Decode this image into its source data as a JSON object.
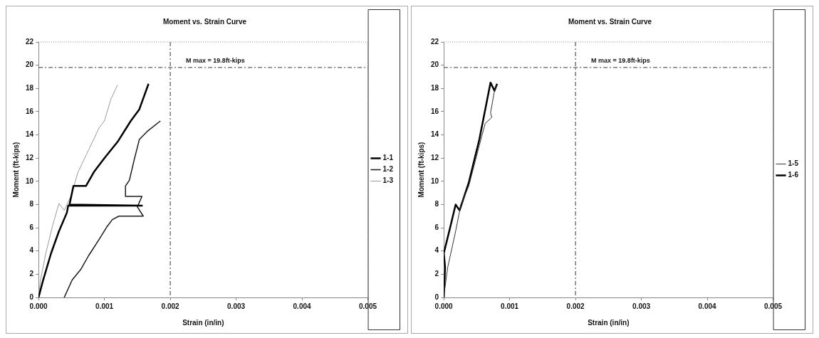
{
  "chart_data": [
    {
      "type": "line",
      "title": "Moment vs. Strain Curve",
      "xlabel": "Strain (in/in)",
      "ylabel": "Moment (ft-kips)",
      "xlim": [
        0,
        0.005
      ],
      "xticks": [
        {
          "value": 0,
          "label": "0.000"
        },
        {
          "value": 0.001,
          "label": "0.001"
        },
        {
          "value": 0.002,
          "label": "0.002"
        },
        {
          "value": 0.003,
          "label": "0.003"
        },
        {
          "value": 0.004,
          "label": "0.004"
        },
        {
          "value": 0.005,
          "label": "0.005"
        }
      ],
      "ylim": [
        0,
        22
      ],
      "yticks": [
        0,
        2,
        4,
        6,
        8,
        10,
        12,
        14,
        16,
        18,
        20,
        22
      ],
      "grid": false,
      "legend": "right",
      "marker": "none",
      "line_style": "solid",
      "ref_lines": [
        {
          "axis": "y",
          "value": 19.8,
          "label": "M max = 19.8ft-kips",
          "color": "#333333",
          "line_style": "dashdot"
        },
        {
          "axis": "x",
          "value": 0.002,
          "label": null,
          "color": "#333333",
          "line_style": "dashdot"
        }
      ],
      "series": [
        {
          "name": "1-1",
          "color": "#000000",
          "x": [
            0,
            7e-05,
            0.00019,
            0.00031,
            0.00043,
            0.00045,
            0.00157,
            0.00047,
            0.00053,
            0.00072,
            0.00084,
            0.001,
            0.0012,
            0.0014,
            0.00153,
            0.00167
          ],
          "values": [
            0,
            1.5,
            3.8,
            5.7,
            7.3,
            7.9,
            7.9,
            8.0,
            9.6,
            9.6,
            10.8,
            12,
            13.4,
            15.2,
            16.2,
            18.4
          ]
        },
        {
          "name": "1-2",
          "color": "#1a1a1a",
          "x": [
            0.00039,
            0.00051,
            0.00064,
            0.00076,
            0.00092,
            0.00104,
            0.00112,
            0.00122,
            0.00159,
            0.0015,
            0.00157,
            0.00132,
            0.00132,
            0.00138,
            0.00145,
            0.00153,
            0.00165,
            0.00185
          ],
          "values": [
            0,
            1.5,
            2.4,
            3.6,
            5.0,
            6.1,
            6.7,
            7.0,
            7.0,
            7.8,
            8.7,
            8.7,
            9.6,
            10.1,
            11.8,
            13.6,
            14.3,
            15.2
          ]
        },
        {
          "name": "1-3",
          "color": "#999999",
          "x": [
            0,
            3e-05,
            0.00011,
            0.00021,
            0.00031,
            0.00039,
            0.00049,
            0.0006,
            0.00076,
            0.00092,
            0.001,
            0.0011,
            0.0012
          ],
          "values": [
            0,
            1.5,
            3.8,
            6.1,
            8.1,
            7.5,
            8.7,
            10.8,
            12.7,
            14.6,
            15.2,
            17.1,
            18.3
          ]
        }
      ]
    },
    {
      "type": "line",
      "title": "Moment vs. Strain Curve",
      "xlabel": "Strain (in/in)",
      "ylabel": "Moment (ft-kips)",
      "xlim": [
        0,
        0.005
      ],
      "xticks": [
        {
          "value": 0,
          "label": "0.000"
        },
        {
          "value": 0.001,
          "label": "0.001"
        },
        {
          "value": 0.002,
          "label": "0.002"
        },
        {
          "value": 0.003,
          "label": "0.003"
        },
        {
          "value": 0.004,
          "label": "0.004"
        },
        {
          "value": 0.005,
          "label": "0.005"
        }
      ],
      "ylim": [
        0,
        22
      ],
      "yticks": [
        0,
        2,
        4,
        6,
        8,
        10,
        12,
        14,
        16,
        18,
        20,
        22
      ],
      "grid": false,
      "legend": "right",
      "marker": "none",
      "line_style": "solid",
      "ref_lines": [
        {
          "axis": "y",
          "value": 19.8,
          "label": "M max = 19.8ft-kips",
          "color": "#333333",
          "line_style": "dashdot"
        },
        {
          "axis": "x",
          "value": 0.002,
          "label": null,
          "color": "#333333",
          "line_style": "dashdot"
        }
      ],
      "series": [
        {
          "name": "1-5",
          "color": "#333333",
          "x": [
            1e-05,
            6e-05,
            0.00018,
            0.00026,
            0.00038,
            0.00054,
            0.00063,
            0.00073,
            0.00071,
            0.00077,
            0.00081
          ],
          "values": [
            0.5,
            2.6,
            5.7,
            8,
            9.6,
            13.1,
            15,
            15.5,
            15.9,
            17.8,
            18.3
          ]
        },
        {
          "name": "1-6",
          "color": "#000000",
          "x": [
            0,
            2e-05,
            0,
            0.0001,
            0.00018,
            0.00024,
            0.00038,
            0.00054,
            0.00071,
            0.00077,
            0.00081
          ],
          "values": [
            0,
            2.6,
            3.8,
            6.1,
            8,
            7.5,
            9.9,
            13.6,
            18.5,
            17.8,
            18.4
          ]
        }
      ]
    }
  ]
}
